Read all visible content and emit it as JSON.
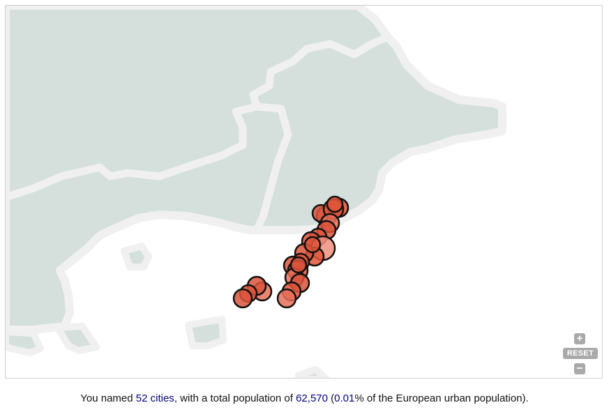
{
  "colors": {
    "land": "#d5dfdb",
    "border": "#f0f0f0",
    "sea": "#ffffff",
    "marker_fill": "#e0553a",
    "marker_stroke": "#111111",
    "link": "#000080"
  },
  "map": {
    "icons": {
      "zoom_in": "plus-icon",
      "zoom_out": "minus-icon"
    },
    "controls": {
      "zoom_in": "+",
      "reset": "RESET",
      "zoom_out": "−"
    }
  },
  "summary": {
    "prefix": "You named ",
    "cities": "52 cities",
    "middle": ", with a total population of ",
    "population": "62,570",
    "open_paren": " (",
    "percent": "0.01",
    "suffix": "% of the European urban population)."
  }
}
